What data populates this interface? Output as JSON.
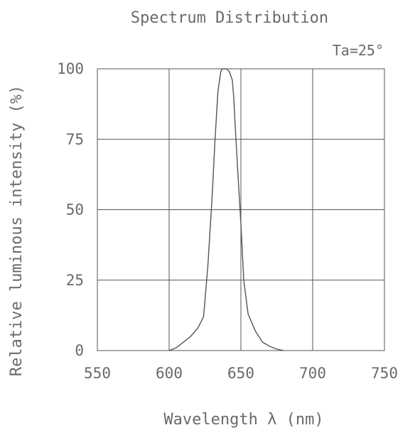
{
  "chart_data": {
    "type": "line",
    "title": "Spectrum Distribution",
    "annotation": "Ta=25°",
    "xlabel": "Wavelength λ (nm)",
    "ylabel": "Relative luminous intensity (%)",
    "xlim": [
      550,
      750
    ],
    "ylim": [
      0,
      100
    ],
    "x_ticks": [
      "550",
      "600",
      "650",
      "700",
      "750"
    ],
    "y_ticks": [
      "0",
      "25",
      "50",
      "75",
      "100"
    ],
    "grid": true,
    "line_color": "#555555",
    "series": [
      {
        "x": [
          600,
          605,
          610,
          615,
          620,
          624,
          627,
          630,
          632,
          634,
          636,
          637,
          638,
          640,
          642,
          644,
          645,
          646,
          648,
          650,
          651,
          652,
          655,
          660,
          665,
          670,
          675,
          680
        ],
        "y": [
          0,
          1,
          3,
          5,
          8,
          12,
          30,
          55,
          75,
          92,
          99,
          100,
          100,
          100,
          99,
          96,
          90,
          80,
          62,
          45,
          35,
          25,
          13,
          7,
          3,
          1.5,
          0.5,
          0
        ]
      }
    ]
  }
}
